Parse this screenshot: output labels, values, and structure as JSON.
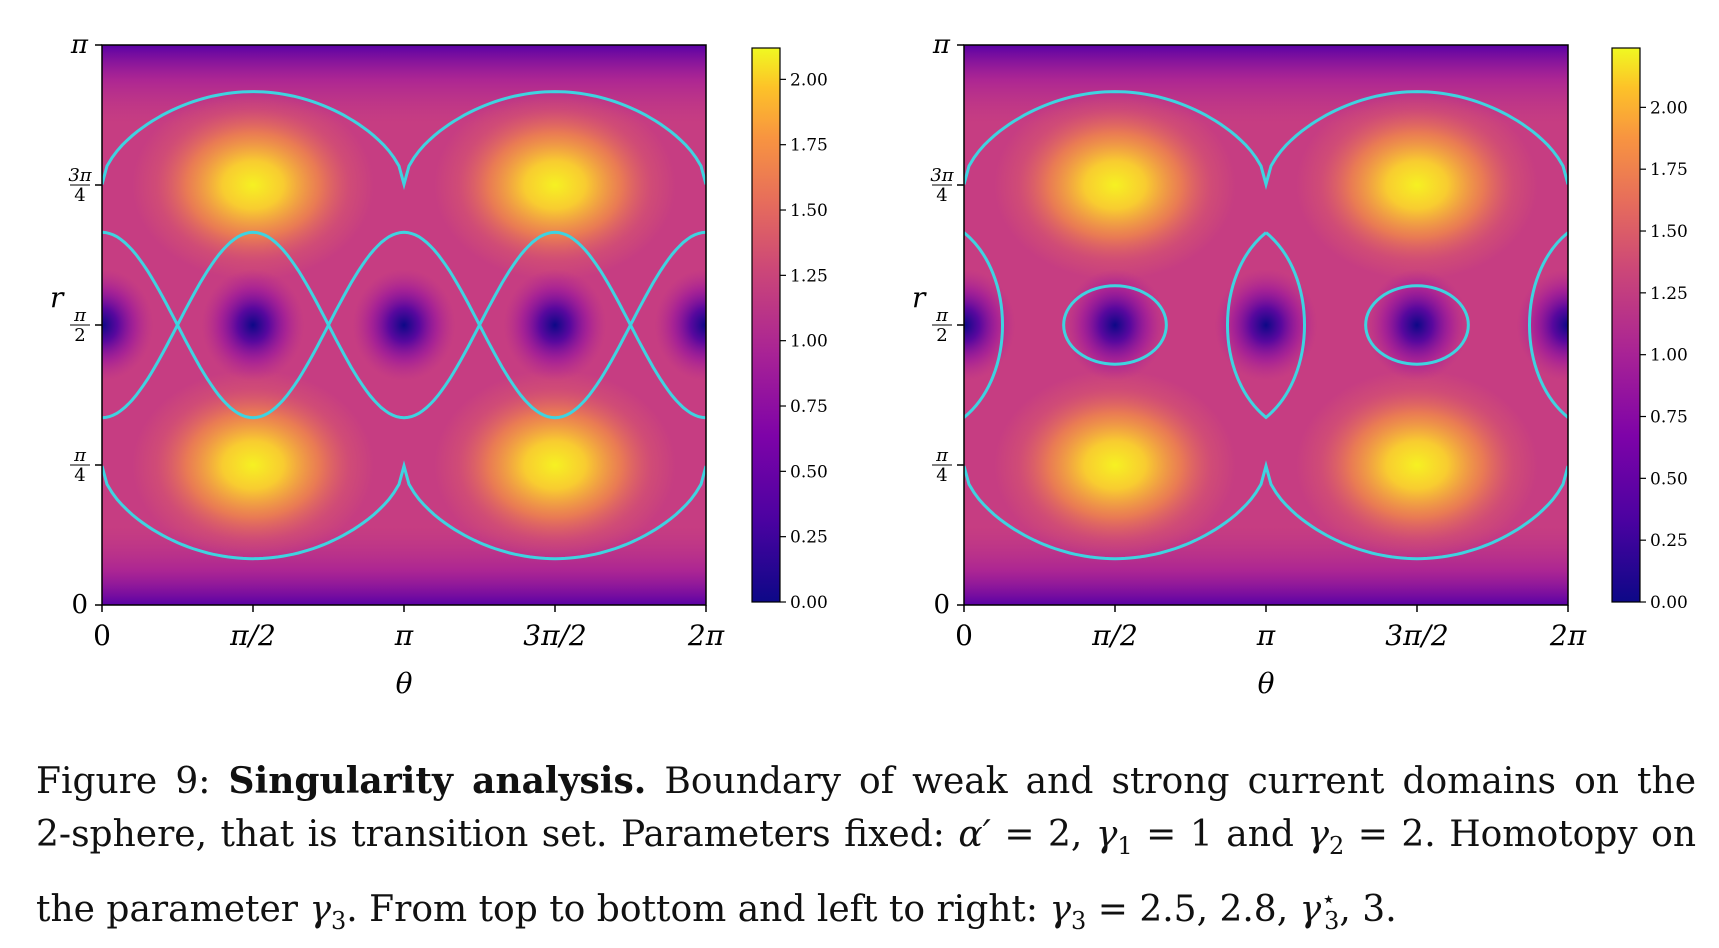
{
  "panels": [
    {
      "id": "left",
      "ytick_labels": [
        "π",
        "3π/4",
        "π/2",
        "π/4",
        "0"
      ],
      "xtick_labels": [
        "0",
        "π/2",
        "π",
        "3π/2",
        "2π"
      ],
      "ylabel": "r",
      "xlabel": "θ",
      "colorbar_ticks": [
        "2.00",
        "1.75",
        "1.50",
        "1.25",
        "1.00",
        "0.75",
        "0.50",
        "0.25",
        "0.00"
      ]
    },
    {
      "id": "right",
      "ytick_labels": [
        "π",
        "3π/4",
        "π/2",
        "π/4",
        "0"
      ],
      "xtick_labels": [
        "0",
        "π/2",
        "π",
        "3π/2",
        "2π"
      ],
      "ylabel": "r",
      "xlabel": "θ",
      "colorbar_ticks": [
        "2.00",
        "1.75",
        "1.50",
        "1.25",
        "1.00",
        "0.75",
        "0.50",
        "0.25",
        "0.00"
      ]
    }
  ],
  "chart_data": [
    {
      "type": "heatmap",
      "xlabel": "θ",
      "ylabel": "r",
      "xlim": [
        0,
        6.2832
      ],
      "ylim": [
        0,
        3.1416
      ],
      "colormap": "plasma",
      "colorbar_range": [
        0,
        2.12
      ],
      "colorbar_ticks": [
        0.0,
        0.25,
        0.5,
        0.75,
        1.0,
        1.25,
        1.5,
        1.75,
        2.0
      ],
      "contour_color": "#3fd3e0",
      "peaks": [
        [
          1.5708,
          0.785
        ],
        [
          4.712,
          0.785
        ],
        [
          1.5708,
          2.356
        ],
        [
          4.712,
          2.356
        ]
      ],
      "minima": [
        [
          1.5708,
          1.5708
        ],
        [
          3.1416,
          1.5708
        ],
        [
          4.712,
          1.5708
        ],
        [
          0,
          1.5708
        ],
        [
          6.2832,
          1.5708
        ]
      ],
      "contour_style": "crossing"
    },
    {
      "type": "heatmap",
      "xlabel": "θ",
      "ylabel": "r",
      "xlim": [
        0,
        6.2832
      ],
      "ylim": [
        0,
        3.1416
      ],
      "colormap": "plasma",
      "colorbar_range": [
        0,
        2.24
      ],
      "colorbar_ticks": [
        0.0,
        0.25,
        0.5,
        0.75,
        1.0,
        1.25,
        1.5,
        1.75,
        2.0
      ],
      "contour_color": "#3fd3e0",
      "peaks": [
        [
          1.5708,
          0.785
        ],
        [
          4.712,
          0.785
        ],
        [
          1.5708,
          2.356
        ],
        [
          4.712,
          2.356
        ]
      ],
      "minima": [
        [
          1.5708,
          1.5708
        ],
        [
          3.1416,
          1.5708
        ],
        [
          4.712,
          1.5708
        ],
        [
          0,
          1.5708
        ],
        [
          6.2832,
          1.5708
        ]
      ],
      "contour_style": "closed"
    }
  ],
  "caption": {
    "label": "Figure 9:",
    "bold": "Singularity analysis.",
    "line1_rest": "Boundary of weak and strong current domains on the",
    "line2_a": "2-sphere, that is transition set. Parameters fixed: ",
    "alpha": "α′",
    "line2_b": " = 2, ",
    "g": "γ",
    "s1": "1",
    "line2_c": " = 1 and ",
    "s2": "2",
    "line2_d": " = 2. Homotopy on",
    "line3_a": "the parameter ",
    "s3": "3",
    "line3_b": ". From top to bottom and left to right: ",
    "line3_c": " = 2.5, 2.8, ",
    "star": "⋆",
    "line3_d": ", 3."
  }
}
